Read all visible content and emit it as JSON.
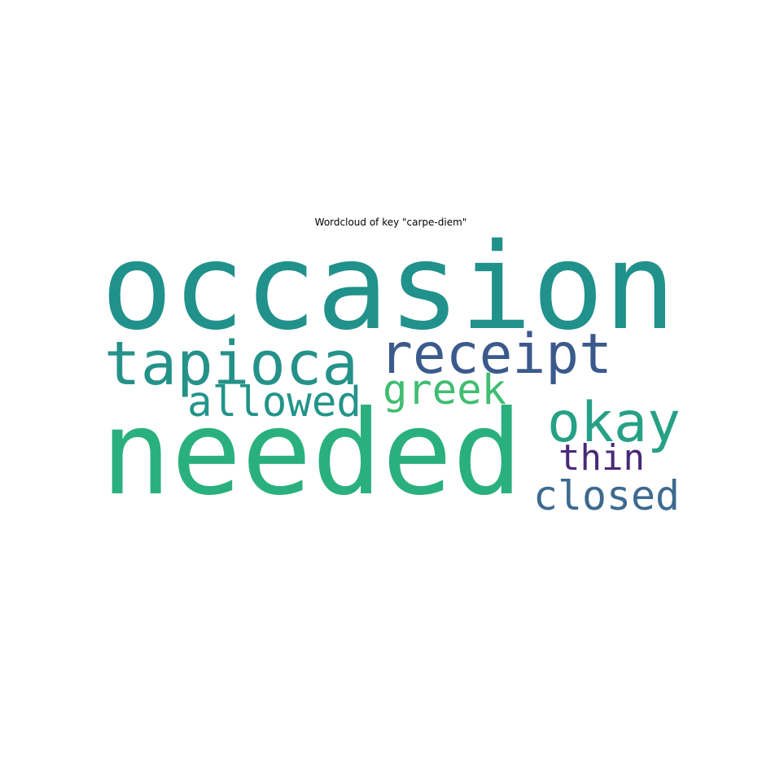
{
  "chart_data": {
    "type": "wordcloud",
    "title": "Wordcloud of key \"carpe-diem\"",
    "colormap": "viridis",
    "words": [
      {
        "text": "occasion",
        "weight": 1.0,
        "color": "#21918c"
      },
      {
        "text": "needed",
        "weight": 0.98,
        "color": "#2ab07f"
      },
      {
        "text": "tapioca",
        "weight": 0.58,
        "color": "#25928a"
      },
      {
        "text": "receipt",
        "weight": 0.54,
        "color": "#3b5a8c"
      },
      {
        "text": "okay",
        "weight": 0.52,
        "color": "#26a185"
      },
      {
        "text": "allowed",
        "weight": 0.38,
        "color": "#23948a"
      },
      {
        "text": "greek",
        "weight": 0.38,
        "color": "#40bd72"
      },
      {
        "text": "closed",
        "weight": 0.38,
        "color": "#3d6a8f"
      },
      {
        "text": "thin",
        "weight": 0.34,
        "color": "#482878"
      }
    ]
  }
}
